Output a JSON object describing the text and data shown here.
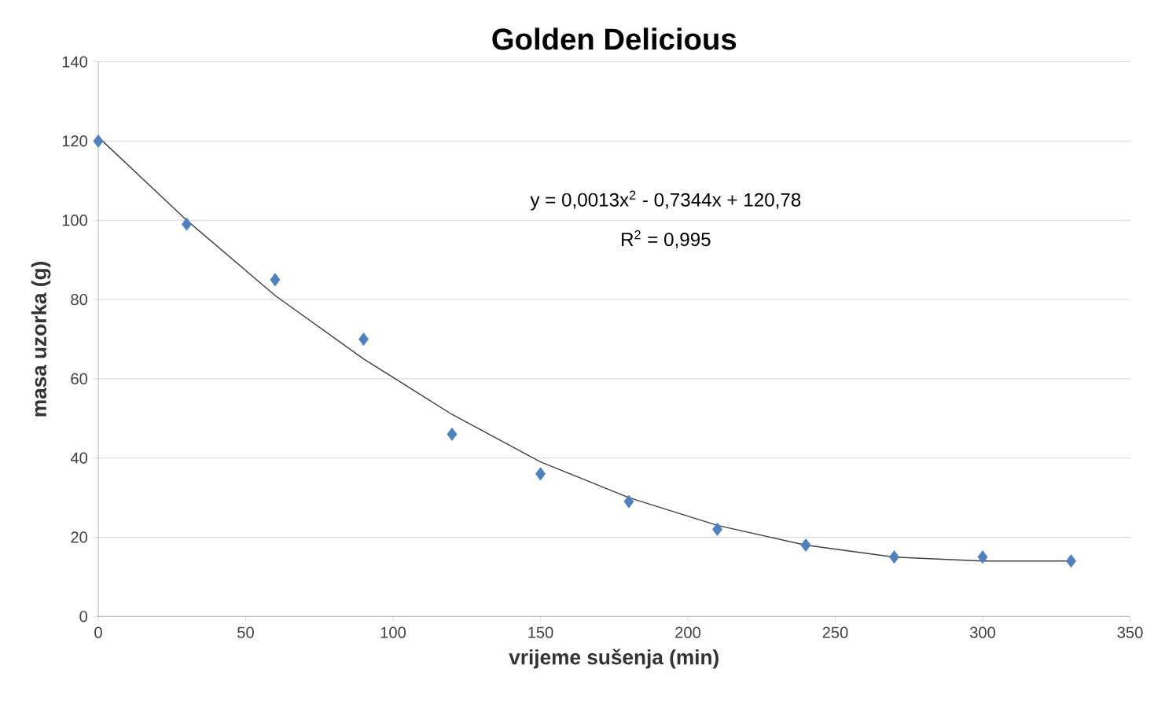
{
  "chart_data": {
    "type": "scatter",
    "title": "Golden Delicious",
    "xlabel": "vrijeme sušenja (min)",
    "ylabel": "masa uzorka (g)",
    "xlim": [
      0,
      350
    ],
    "xticks": [
      0,
      50,
      100,
      150,
      200,
      250,
      300,
      350
    ],
    "ylim": [
      0,
      140
    ],
    "yticks": [
      0,
      20,
      40,
      60,
      80,
      100,
      120,
      140
    ],
    "grid": "y",
    "marker": "diamond",
    "annotations": [
      "y = 0,0013x$^{2}$ - 0,7344x + 120,78",
      "R$^{2}$ = 0,995"
    ],
    "series": [
      {
        "color": "#4f81bd",
        "x": [
          0,
          30,
          60,
          90,
          120,
          150,
          180,
          210,
          240,
          270,
          300,
          330
        ],
        "values": [
          120,
          99,
          85,
          70,
          46,
          36,
          29,
          22,
          18,
          15,
          15,
          14
        ]
      },
      {
        "type": "line",
        "color": "#404040",
        "marker": "none",
        "line_style": "solid",
        "x": [
          0,
          30,
          60,
          90,
          120,
          150,
          180,
          210,
          240,
          270,
          300,
          330
        ],
        "values": [
          121,
          100,
          81,
          65,
          51,
          39,
          30,
          23,
          18,
          15,
          14,
          14
        ]
      }
    ]
  }
}
